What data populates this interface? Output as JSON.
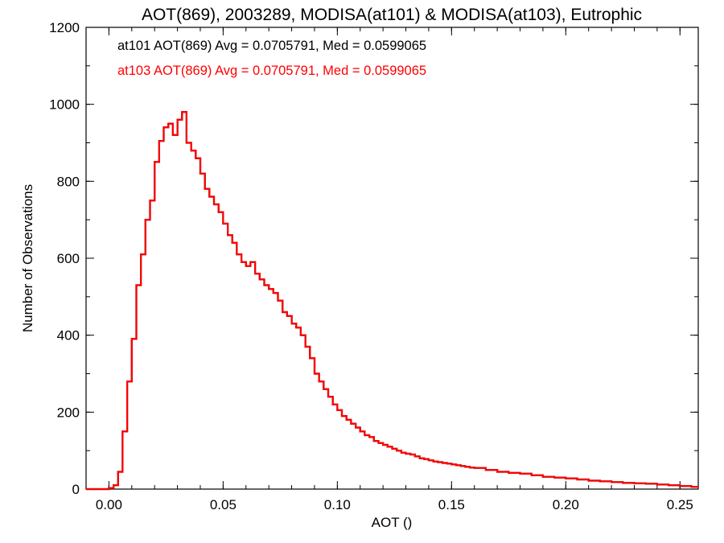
{
  "chart_data": {
    "type": "histogram",
    "title": "AOT(869), 2003289, MODISA(at101) & MODISA(at103), Eutrophic",
    "xlabel": "AOT ()",
    "ylabel": "Number of Observations",
    "xlim": [
      -0.01,
      0.258
    ],
    "ylim": [
      0,
      1200
    ],
    "xticks": [
      "0.00",
      "0.05",
      "0.10",
      "0.15",
      "0.20",
      "0.25"
    ],
    "yticks": [
      "0",
      "200",
      "400",
      "600",
      "800",
      "1000",
      "1200"
    ],
    "grid": false,
    "annotations": [
      {
        "text": "at101 AOT(869) Avg = 0.0705791, Med = 0.0599065",
        "color": "#000000"
      },
      {
        "text": "at103 AOT(869) Avg = 0.0705791, Med = 0.0599065",
        "color": "#ff0000"
      }
    ],
    "series": [
      {
        "color": "#000000"
      },
      {
        "color": "#ff0000"
      }
    ],
    "x": [
      -0.01,
      0.0,
      0.002,
      0.004,
      0.006,
      0.008,
      0.01,
      0.012,
      0.014,
      0.016,
      0.018,
      0.02,
      0.022,
      0.024,
      0.026,
      0.028,
      0.03,
      0.032,
      0.034,
      0.036,
      0.038,
      0.04,
      0.042,
      0.044,
      0.046,
      0.048,
      0.05,
      0.052,
      0.054,
      0.056,
      0.058,
      0.06,
      0.062,
      0.064,
      0.066,
      0.068,
      0.07,
      0.072,
      0.074,
      0.076,
      0.078,
      0.08,
      0.082,
      0.084,
      0.086,
      0.088,
      0.09,
      0.092,
      0.094,
      0.096,
      0.098,
      0.1,
      0.102,
      0.104,
      0.106,
      0.108,
      0.11,
      0.112,
      0.114,
      0.116,
      0.118,
      0.12,
      0.122,
      0.124,
      0.126,
      0.128,
      0.13,
      0.132,
      0.134,
      0.136,
      0.138,
      0.14,
      0.142,
      0.144,
      0.146,
      0.148,
      0.15,
      0.152,
      0.154,
      0.156,
      0.158,
      0.16,
      0.165,
      0.17,
      0.175,
      0.18,
      0.185,
      0.19,
      0.195,
      0.2,
      0.205,
      0.21,
      0.215,
      0.22,
      0.225,
      0.23,
      0.235,
      0.24,
      0.245,
      0.25,
      0.255
    ],
    "values": [
      0,
      3,
      10,
      45,
      150,
      280,
      390,
      530,
      610,
      700,
      750,
      850,
      905,
      940,
      950,
      920,
      960,
      980,
      900,
      880,
      860,
      820,
      780,
      760,
      740,
      720,
      690,
      660,
      640,
      610,
      590,
      580,
      590,
      560,
      545,
      530,
      520,
      510,
      490,
      460,
      450,
      430,
      420,
      400,
      370,
      340,
      300,
      280,
      260,
      240,
      220,
      205,
      190,
      180,
      170,
      160,
      150,
      140,
      135,
      125,
      120,
      115,
      110,
      105,
      100,
      95,
      92,
      90,
      85,
      80,
      78,
      75,
      72,
      70,
      68,
      66,
      64,
      62,
      60,
      58,
      56,
      55,
      50,
      45,
      42,
      40,
      36,
      32,
      30,
      28,
      25,
      22,
      20,
      18,
      16,
      15,
      14,
      12,
      10,
      8,
      6
    ]
  }
}
